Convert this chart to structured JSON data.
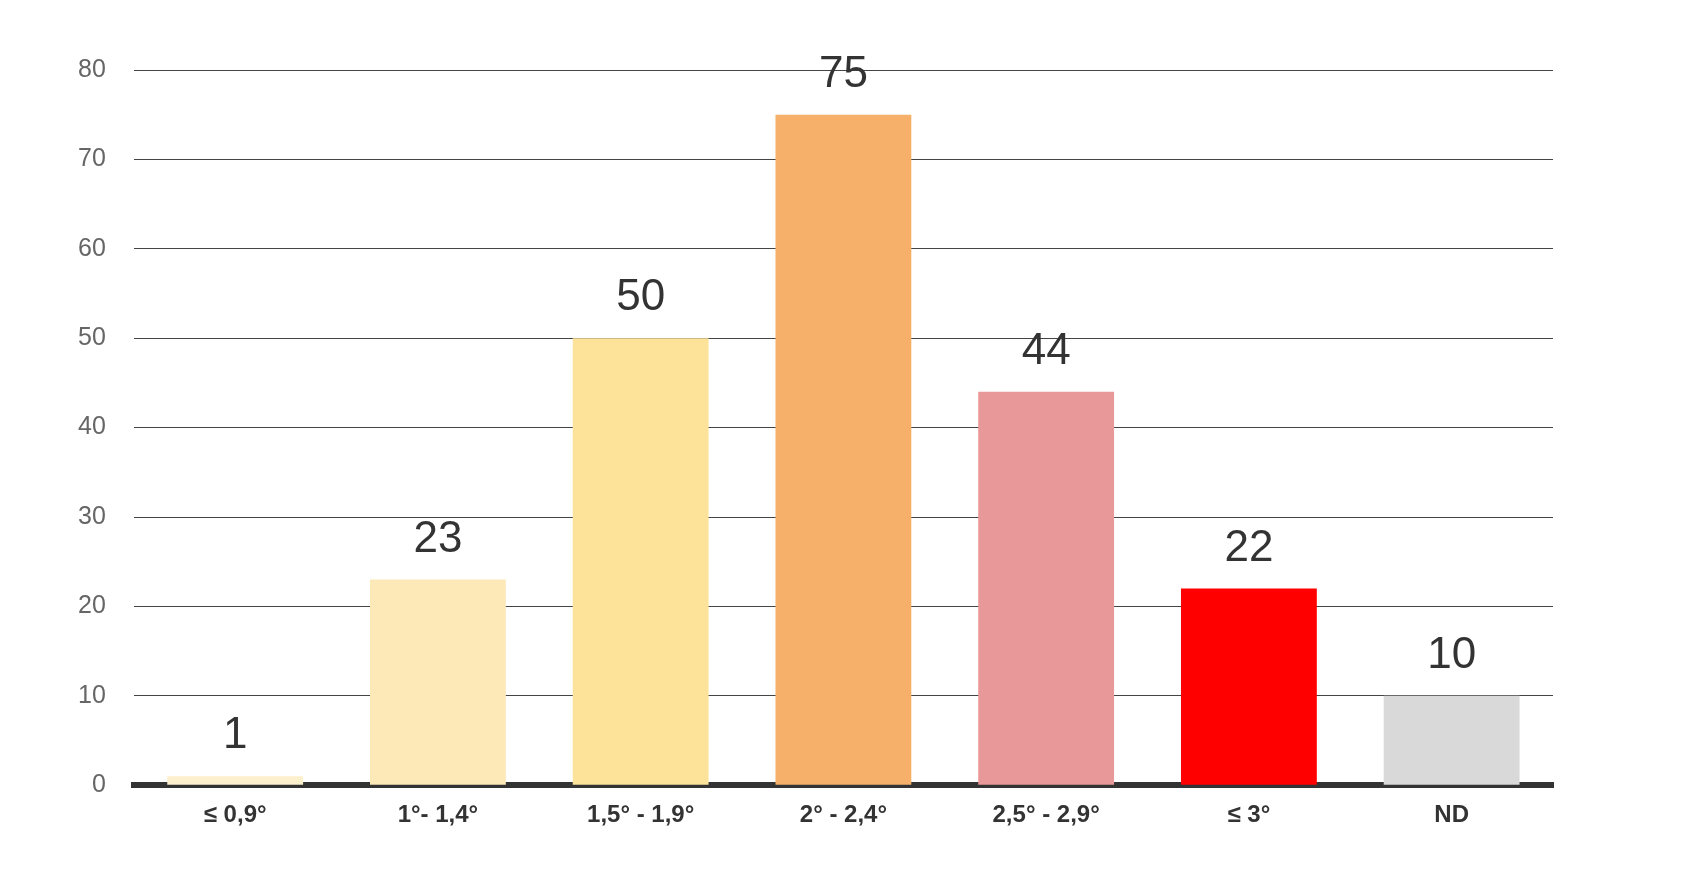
{
  "chart_data": {
    "type": "bar",
    "categories": [
      "≤ 0,9°",
      "1°- 1,4°",
      "1,5° - 1,9°",
      "2° - 2,4°",
      "2,5° - 2,9°",
      "≤ 3°",
      "ND"
    ],
    "values": [
      1,
      23,
      50,
      75,
      44,
      22,
      10
    ],
    "colors": [
      "#fdf0cc",
      "#fde9b8",
      "#fde29a",
      "#f6b06a",
      "#e89898",
      "#ff0000",
      "#d9d9d9"
    ],
    "ylim": [
      0,
      80
    ],
    "yticks": [
      0,
      10,
      20,
      30,
      40,
      50,
      60,
      70,
      80
    ],
    "grid": "y",
    "data_labels": true,
    "legend": false
  }
}
